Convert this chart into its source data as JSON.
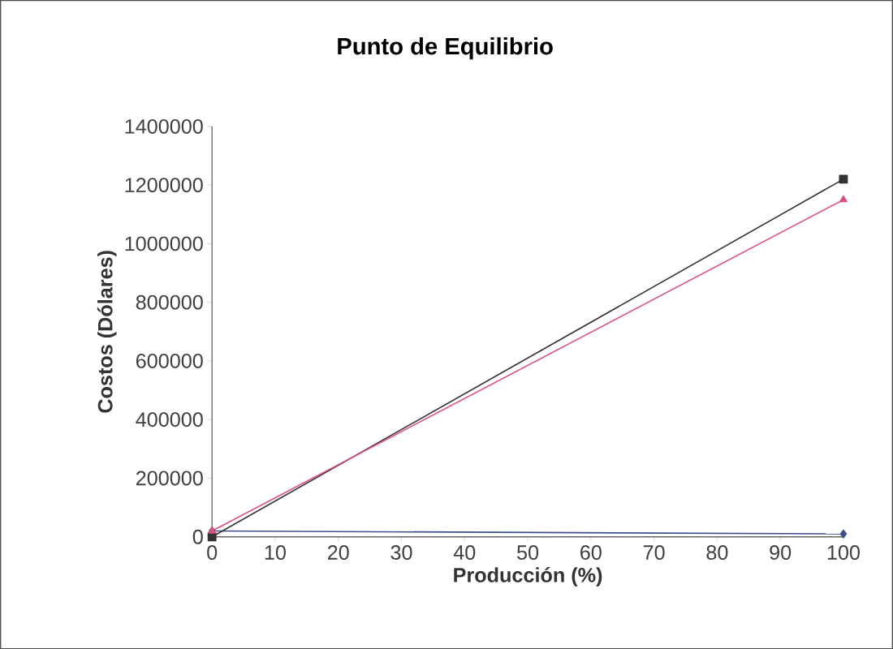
{
  "chart_data": {
    "type": "line",
    "title": "Punto de Equilibrio",
    "xlabel": "Producción (%)",
    "ylabel": "Costos (Dólares)",
    "x": [
      0,
      100
    ],
    "series": [
      {
        "color": "#3b4f8f",
        "marker": "diamond",
        "values": [
          20000,
          10000
        ]
      },
      {
        "color": "#333333",
        "marker": "square",
        "values": [
          0,
          1220000
        ]
      },
      {
        "color": "#e0507a",
        "marker": "triangle",
        "values": [
          20000,
          1150000
        ]
      }
    ],
    "xlim": [
      0,
      100
    ],
    "xticks": [
      0,
      10,
      20,
      30,
      40,
      50,
      60,
      70,
      80,
      90,
      100
    ],
    "ylim": [
      0,
      1400000
    ],
    "yticks": [
      0,
      200000,
      400000,
      600000,
      800000,
      1000000,
      1200000,
      1400000
    ],
    "grid": false
  }
}
